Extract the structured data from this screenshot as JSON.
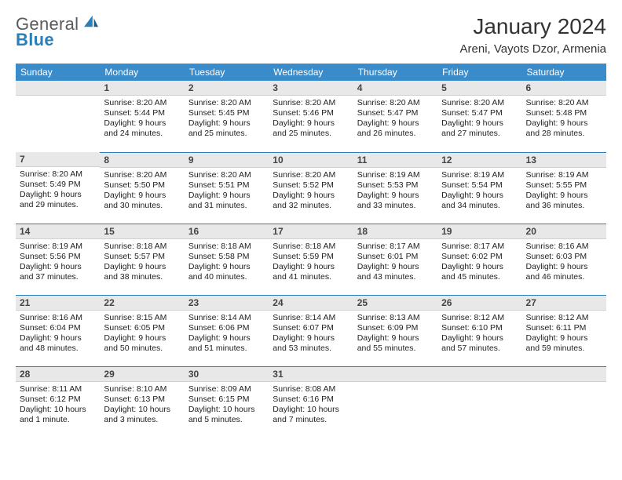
{
  "brand": {
    "name_top": "General",
    "name_bottom": "Blue",
    "colors": {
      "top": "#5a5a5a",
      "bottom": "#2a7fba"
    }
  },
  "title": "January 2024",
  "location": "Areni, Vayots Dzor, Armenia",
  "table": {
    "header_bg": "#3a8bc9",
    "header_fg": "#ffffff",
    "daynum_bg": "#e8e8e8",
    "row_border": "#2a7fba",
    "font_size_body": 10.5,
    "font_size_header": 12,
    "columns": [
      "Sunday",
      "Monday",
      "Tuesday",
      "Wednesday",
      "Thursday",
      "Friday",
      "Saturday"
    ],
    "weeks": [
      [
        null,
        {
          "n": "1",
          "sr": "8:20 AM",
          "ss": "5:44 PM",
          "dl": "9 hours and 24 minutes."
        },
        {
          "n": "2",
          "sr": "8:20 AM",
          "ss": "5:45 PM",
          "dl": "9 hours and 25 minutes."
        },
        {
          "n": "3",
          "sr": "8:20 AM",
          "ss": "5:46 PM",
          "dl": "9 hours and 25 minutes."
        },
        {
          "n": "4",
          "sr": "8:20 AM",
          "ss": "5:47 PM",
          "dl": "9 hours and 26 minutes."
        },
        {
          "n": "5",
          "sr": "8:20 AM",
          "ss": "5:47 PM",
          "dl": "9 hours and 27 minutes."
        },
        {
          "n": "6",
          "sr": "8:20 AM",
          "ss": "5:48 PM",
          "dl": "9 hours and 28 minutes."
        }
      ],
      [
        {
          "n": "7",
          "sr": "8:20 AM",
          "ss": "5:49 PM",
          "dl": "9 hours and 29 minutes."
        },
        {
          "n": "8",
          "sr": "8:20 AM",
          "ss": "5:50 PM",
          "dl": "9 hours and 30 minutes."
        },
        {
          "n": "9",
          "sr": "8:20 AM",
          "ss": "5:51 PM",
          "dl": "9 hours and 31 minutes."
        },
        {
          "n": "10",
          "sr": "8:20 AM",
          "ss": "5:52 PM",
          "dl": "9 hours and 32 minutes."
        },
        {
          "n": "11",
          "sr": "8:19 AM",
          "ss": "5:53 PM",
          "dl": "9 hours and 33 minutes."
        },
        {
          "n": "12",
          "sr": "8:19 AM",
          "ss": "5:54 PM",
          "dl": "9 hours and 34 minutes."
        },
        {
          "n": "13",
          "sr": "8:19 AM",
          "ss": "5:55 PM",
          "dl": "9 hours and 36 minutes."
        }
      ],
      [
        {
          "n": "14",
          "sr": "8:19 AM",
          "ss": "5:56 PM",
          "dl": "9 hours and 37 minutes."
        },
        {
          "n": "15",
          "sr": "8:18 AM",
          "ss": "5:57 PM",
          "dl": "9 hours and 38 minutes."
        },
        {
          "n": "16",
          "sr": "8:18 AM",
          "ss": "5:58 PM",
          "dl": "9 hours and 40 minutes."
        },
        {
          "n": "17",
          "sr": "8:18 AM",
          "ss": "5:59 PM",
          "dl": "9 hours and 41 minutes."
        },
        {
          "n": "18",
          "sr": "8:17 AM",
          "ss": "6:01 PM",
          "dl": "9 hours and 43 minutes."
        },
        {
          "n": "19",
          "sr": "8:17 AM",
          "ss": "6:02 PM",
          "dl": "9 hours and 45 minutes."
        },
        {
          "n": "20",
          "sr": "8:16 AM",
          "ss": "6:03 PM",
          "dl": "9 hours and 46 minutes."
        }
      ],
      [
        {
          "n": "21",
          "sr": "8:16 AM",
          "ss": "6:04 PM",
          "dl": "9 hours and 48 minutes."
        },
        {
          "n": "22",
          "sr": "8:15 AM",
          "ss": "6:05 PM",
          "dl": "9 hours and 50 minutes."
        },
        {
          "n": "23",
          "sr": "8:14 AM",
          "ss": "6:06 PM",
          "dl": "9 hours and 51 minutes."
        },
        {
          "n": "24",
          "sr": "8:14 AM",
          "ss": "6:07 PM",
          "dl": "9 hours and 53 minutes."
        },
        {
          "n": "25",
          "sr": "8:13 AM",
          "ss": "6:09 PM",
          "dl": "9 hours and 55 minutes."
        },
        {
          "n": "26",
          "sr": "8:12 AM",
          "ss": "6:10 PM",
          "dl": "9 hours and 57 minutes."
        },
        {
          "n": "27",
          "sr": "8:12 AM",
          "ss": "6:11 PM",
          "dl": "9 hours and 59 minutes."
        }
      ],
      [
        {
          "n": "28",
          "sr": "8:11 AM",
          "ss": "6:12 PM",
          "dl": "10 hours and 1 minute."
        },
        {
          "n": "29",
          "sr": "8:10 AM",
          "ss": "6:13 PM",
          "dl": "10 hours and 3 minutes."
        },
        {
          "n": "30",
          "sr": "8:09 AM",
          "ss": "6:15 PM",
          "dl": "10 hours and 5 minutes."
        },
        {
          "n": "31",
          "sr": "8:08 AM",
          "ss": "6:16 PM",
          "dl": "10 hours and 7 minutes."
        },
        null,
        null,
        null
      ]
    ]
  },
  "labels": {
    "sunrise": "Sunrise:",
    "sunset": "Sunset:",
    "daylight": "Daylight:"
  }
}
